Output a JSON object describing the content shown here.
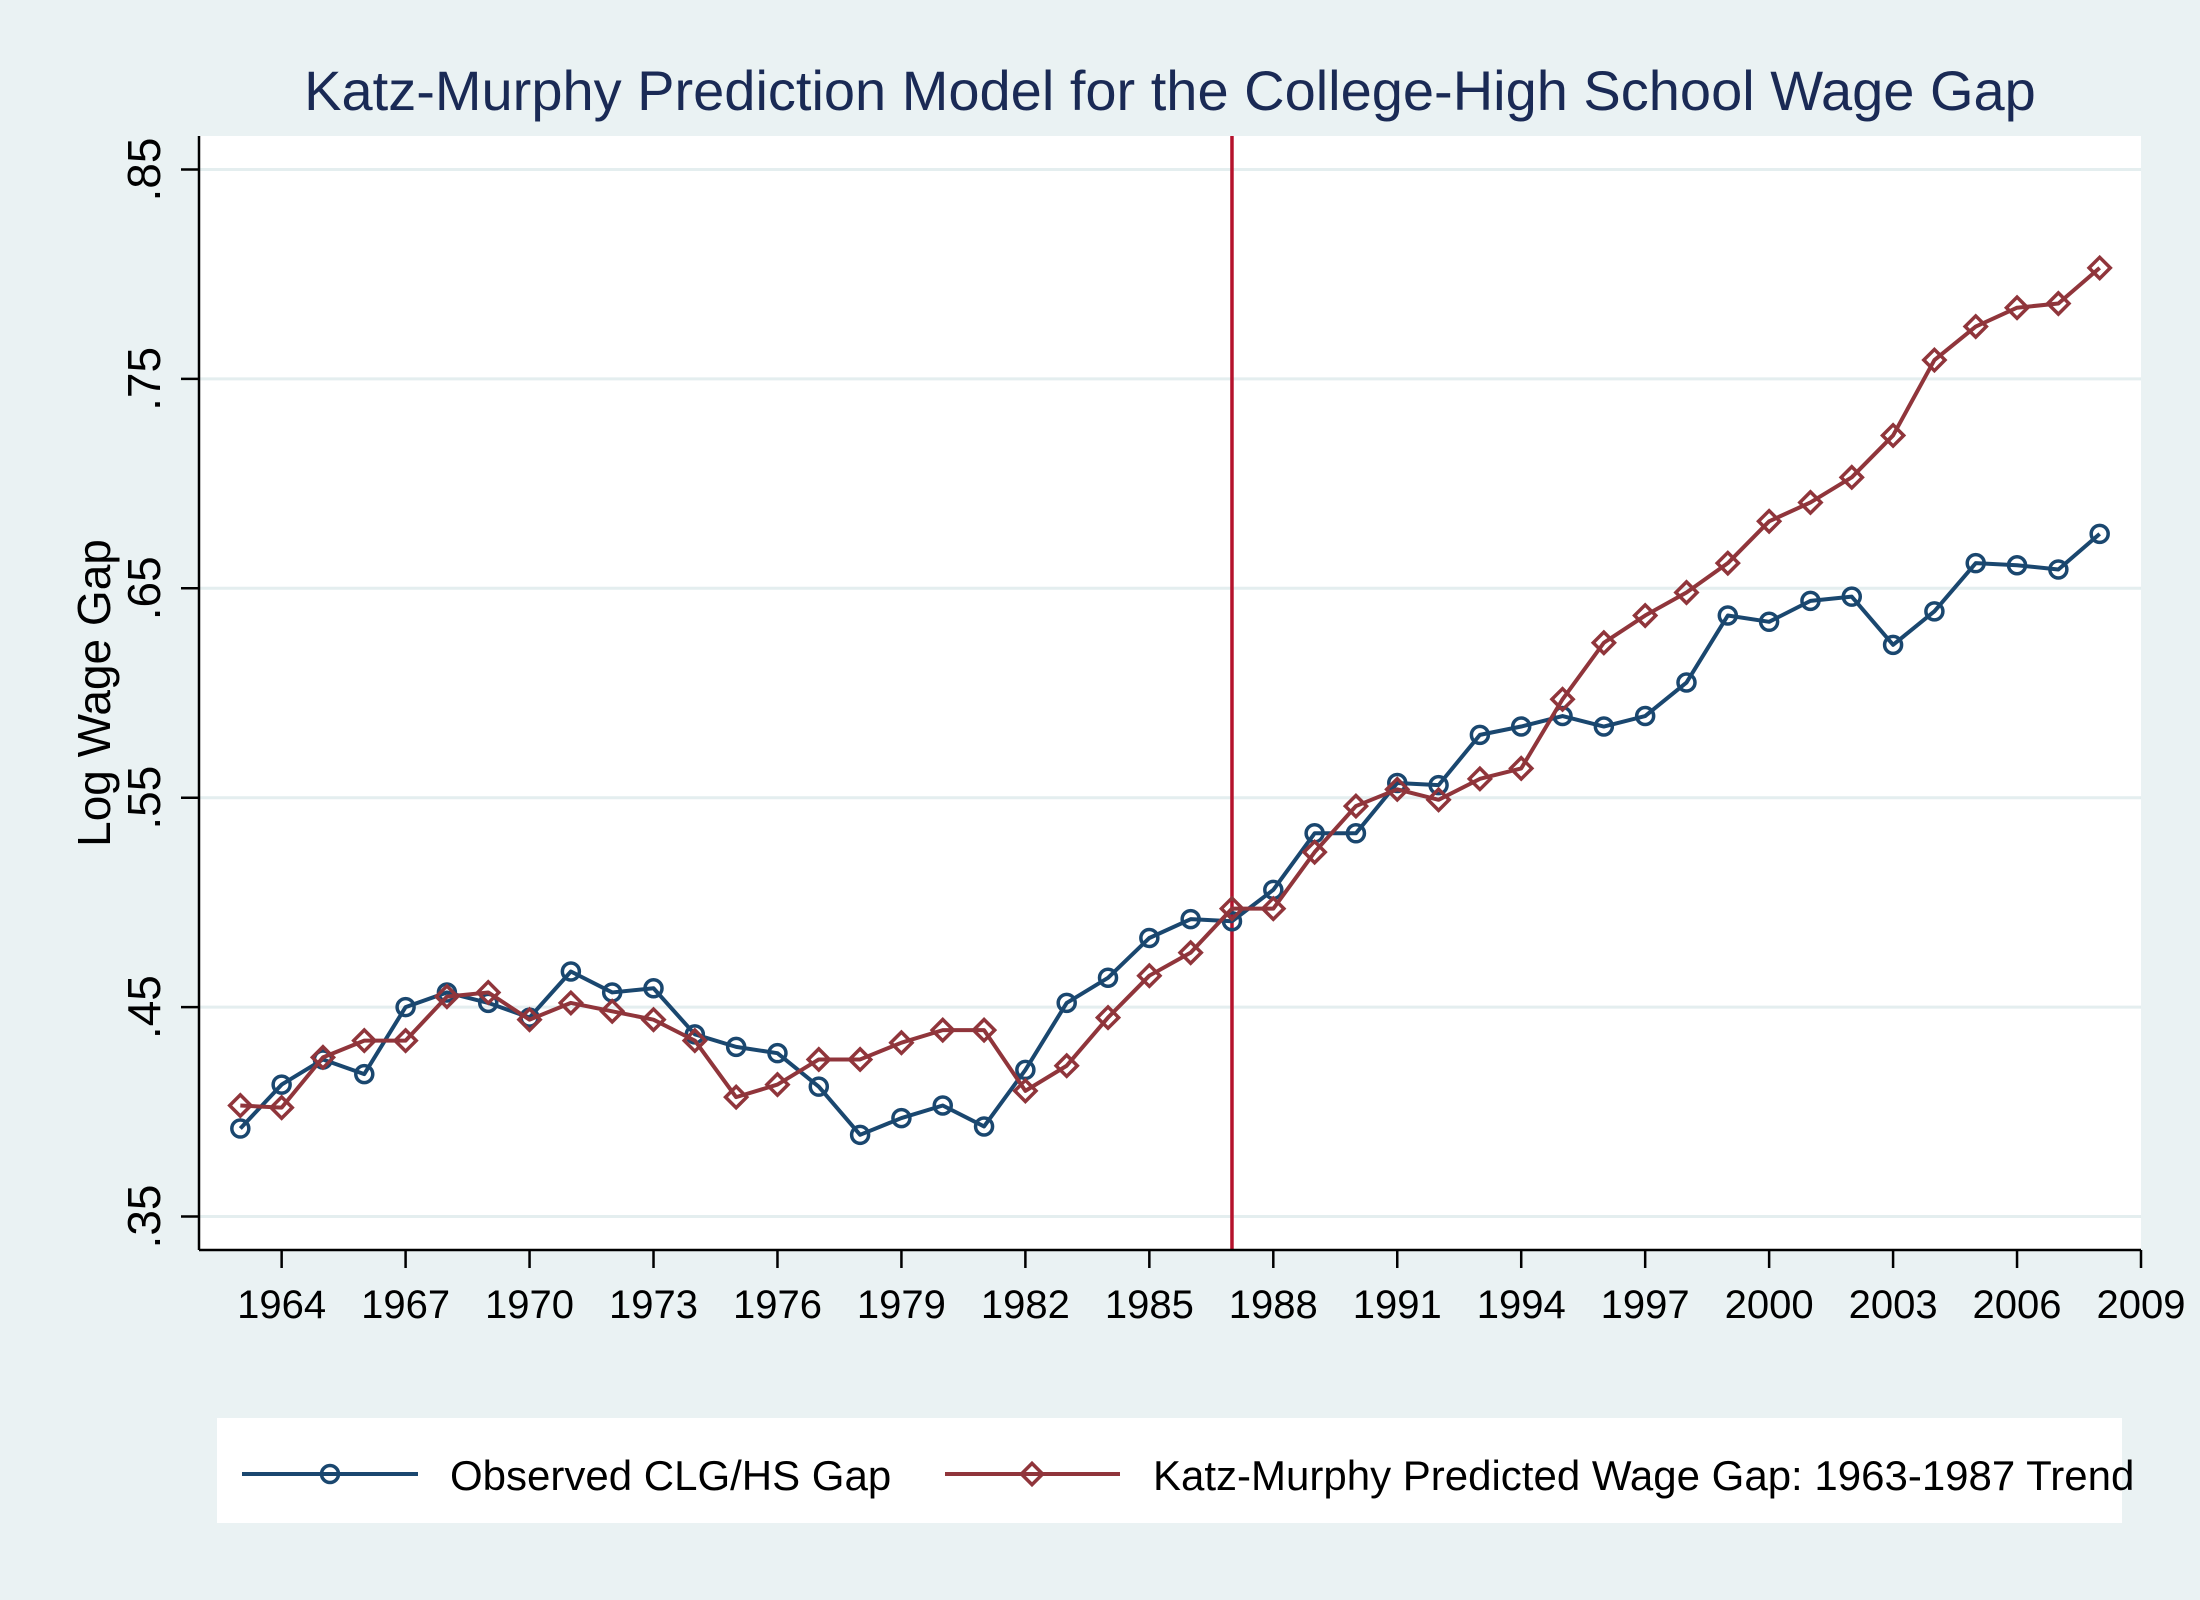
{
  "chart_data": {
    "type": "line",
    "title": "Katz-Murphy Prediction Model for the College-High School Wage Gap",
    "ylabel": "Log Wage Gap",
    "xlabel": "",
    "xlim": [
      1962,
      2009
    ],
    "ylim": [
      0.334,
      0.866
    ],
    "x_ticks": [
      1964,
      1967,
      1970,
      1973,
      1976,
      1979,
      1982,
      1985,
      1988,
      1991,
      1994,
      1997,
      2000,
      2003,
      2006,
      2009
    ],
    "y_ticks": [
      0.35,
      0.45,
      0.55,
      0.65,
      0.75,
      0.85
    ],
    "y_tick_labels": [
      ".35",
      ".45",
      ".55",
      ".65",
      ".75",
      ".85"
    ],
    "grid": true,
    "vline": {
      "x": 1987,
      "color": "#b5122c"
    },
    "legend_position": "bottom",
    "x": [
      1963,
      1964,
      1965,
      1966,
      1967,
      1968,
      1969,
      1970,
      1971,
      1972,
      1973,
      1974,
      1975,
      1976,
      1977,
      1978,
      1979,
      1980,
      1981,
      1982,
      1983,
      1984,
      1985,
      1986,
      1987,
      1988,
      1989,
      1990,
      1991,
      1992,
      1993,
      1994,
      1995,
      1996,
      1997,
      1998,
      1999,
      2000,
      2001,
      2002,
      2003,
      2004,
      2005,
      2006,
      2007,
      2008
    ],
    "series": [
      {
        "name": "Observed CLG/HS Gap",
        "color": "#1a476f",
        "marker": "circle",
        "values": [
          0.392,
          0.413,
          0.425,
          0.418,
          0.45,
          0.457,
          0.452,
          0.445,
          0.467,
          0.457,
          0.459,
          0.437,
          0.431,
          0.428,
          0.412,
          0.389,
          0.397,
          0.403,
          0.393,
          0.42,
          0.452,
          0.464,
          0.483,
          0.492,
          0.491,
          0.506,
          0.533,
          0.533,
          0.557,
          0.556,
          0.58,
          0.584,
          0.589,
          0.584,
          0.589,
          0.605,
          0.637,
          0.634,
          0.644,
          0.646,
          0.623,
          0.639,
          0.662,
          0.661,
          0.659,
          0.676
        ]
      },
      {
        "name": "Katz-Murphy Predicted Wage Gap: 1963-1987 Trend",
        "color": "#90353b",
        "marker": "diamond",
        "values": [
          0.403,
          0.402,
          0.426,
          0.434,
          0.434,
          0.455,
          0.457,
          0.444,
          0.452,
          0.448,
          0.444,
          0.434,
          0.407,
          0.413,
          0.425,
          0.425,
          0.433,
          0.439,
          0.439,
          0.41,
          0.422,
          0.445,
          0.465,
          0.476,
          0.497,
          0.497,
          0.524,
          0.546,
          0.554,
          0.549,
          0.559,
          0.564,
          0.597,
          0.624,
          0.637,
          0.648,
          0.662,
          0.682,
          0.691,
          0.703,
          0.723,
          0.759,
          0.775,
          0.784,
          0.786,
          0.803
        ]
      }
    ]
  }
}
